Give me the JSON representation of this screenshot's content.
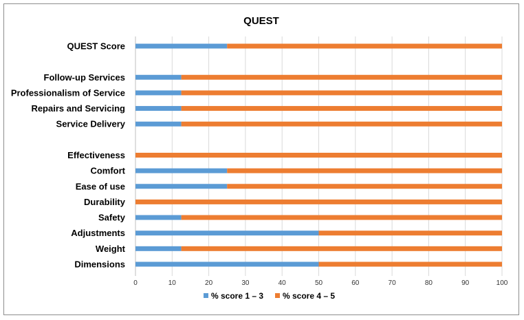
{
  "chart_data": {
    "type": "bar",
    "orientation": "horizontal",
    "stacked": true,
    "title": "QUEST",
    "xlabel": "",
    "ylabel": "",
    "xlim": [
      0,
      100
    ],
    "x_ticks": [
      "0",
      "10",
      "20",
      "30",
      "40",
      "50",
      "60",
      "70",
      "80",
      "90",
      "100"
    ],
    "grid": true,
    "legend_position": "bottom",
    "categories": [
      "QUEST Score",
      "",
      "Follow-up Services",
      "Professionalism of Service",
      "Repairs and Servicing",
      "Service Delivery",
      "",
      "Effectiveness",
      "Comfort",
      "Ease of use",
      "Durability",
      "Safety",
      "Adjustments",
      "Weight",
      "Dimensions"
    ],
    "series": [
      {
        "name": "% score 1 – 3",
        "color": "#5b9bd5",
        "values": [
          25,
          null,
          12.5,
          12.5,
          12.5,
          12.5,
          null,
          0,
          25,
          25,
          0,
          12.5,
          50,
          12.5,
          50
        ]
      },
      {
        "name": "% score 4 – 5",
        "color": "#ed7d31",
        "values": [
          75,
          null,
          87.5,
          87.5,
          87.5,
          87.5,
          null,
          100,
          75,
          75,
          100,
          87.5,
          50,
          87.5,
          50
        ]
      }
    ]
  }
}
